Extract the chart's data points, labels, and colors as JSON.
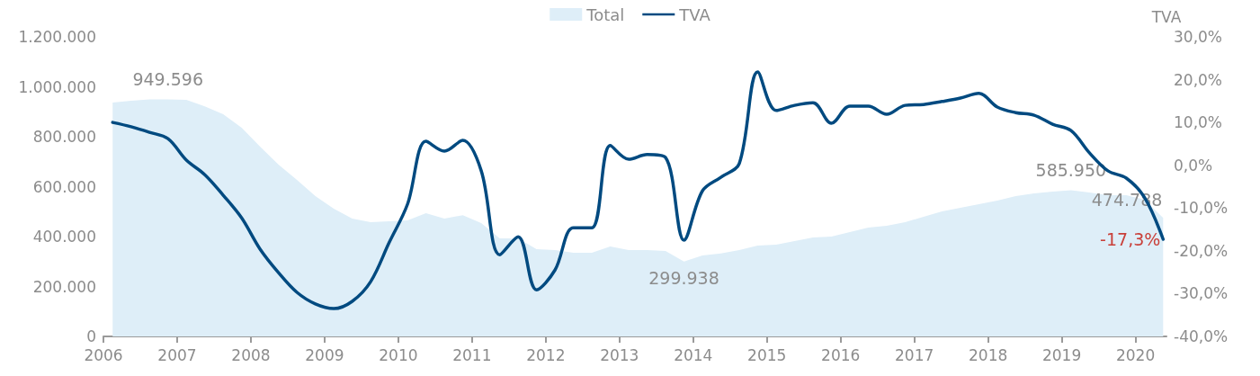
{
  "chart_data": {
    "type": "area",
    "legend": "top",
    "y2label": "TVA",
    "x": [
      2006.125,
      2006.375,
      2006.625,
      2006.875,
      2007.125,
      2007.375,
      2007.625,
      2007.875,
      2008.125,
      2008.375,
      2008.625,
      2008.875,
      2009.125,
      2009.375,
      2009.625,
      2009.875,
      2010.125,
      2010.375,
      2010.625,
      2010.875,
      2011.125,
      2011.375,
      2011.625,
      2011.875,
      2012.125,
      2012.375,
      2012.625,
      2012.875,
      2013.125,
      2013.375,
      2013.625,
      2013.875,
      2014.125,
      2014.375,
      2014.625,
      2014.875,
      2015.125,
      2015.375,
      2015.625,
      2015.875,
      2016.125,
      2016.375,
      2016.625,
      2016.875,
      2017.125,
      2017.375,
      2017.625,
      2017.875,
      2018.125,
      2018.375,
      2018.625,
      2018.875,
      2019.125,
      2019.375,
      2019.625,
      2019.875,
      2020.125,
      2020.375
    ],
    "series": [
      {
        "name": "Total",
        "color": "#deeef8",
        "values": [
          937000,
          944000,
          950000,
          949596,
          948000,
          922000,
          890000,
          836000,
          760000,
          688000,
          627000,
          562000,
          512000,
          472000,
          458000,
          461000,
          465000,
          494000,
          472000,
          486000,
          454000,
          393000,
          393000,
          350000,
          346000,
          335000,
          335000,
          360000,
          346000,
          346000,
          342000,
          299938,
          324000,
          332000,
          346000,
          364000,
          368000,
          382000,
          396000,
          400000,
          418000,
          436000,
          443000,
          458000,
          479000,
          501000,
          515000,
          530000,
          544000,
          562000,
          573000,
          580000,
          585950,
          577000,
          566000,
          566000,
          548000,
          474788
        ],
        "value_labels": [
          null,
          null,
          null,
          "949.596",
          null,
          null,
          null,
          null,
          null,
          null,
          null,
          null,
          null,
          null,
          null,
          null,
          null,
          null,
          null,
          null,
          null,
          null,
          null,
          null,
          null,
          null,
          null,
          null,
          null,
          null,
          null,
          "299.938",
          null,
          null,
          null,
          null,
          null,
          null,
          null,
          null,
          null,
          null,
          null,
          null,
          null,
          null,
          null,
          null,
          null,
          null,
          null,
          null,
          "585.950",
          null,
          null,
          null,
          null,
          "474.788"
        ]
      },
      {
        "name": "TVA",
        "type": "line",
        "axis": "y2",
        "color": "#004a80",
        "values": [
          10.0,
          9.0,
          7.7,
          6.2,
          1.2,
          -2.2,
          -7.0,
          -12.3,
          -19.6,
          -25.1,
          -29.7,
          -32.4,
          -33.5,
          -31.8,
          -27.2,
          -18.1,
          -9.1,
          5.6,
          3.3,
          5.8,
          -1.3,
          -20.9,
          -16.7,
          -29.1,
          -24.5,
          -14.6,
          -14.6,
          4.6,
          1.4,
          2.5,
          1.8,
          -17.5,
          -6.0,
          -2.8,
          0.4,
          21.8,
          12.8,
          14.0,
          14.6,
          9.8,
          13.8,
          13.8,
          11.9,
          14.0,
          14.2,
          14.9,
          15.7,
          16.8,
          13.6,
          12.3,
          11.7,
          9.6,
          8.1,
          2.9,
          -1.3,
          -3.0,
          -7.6,
          -17.3
        ],
        "value_labels": [
          null,
          null,
          null,
          null,
          null,
          null,
          null,
          null,
          null,
          null,
          null,
          null,
          null,
          null,
          null,
          null,
          null,
          null,
          null,
          null,
          null,
          null,
          null,
          null,
          null,
          null,
          null,
          null,
          null,
          null,
          null,
          null,
          null,
          null,
          null,
          null,
          null,
          null,
          null,
          null,
          null,
          null,
          null,
          null,
          null,
          null,
          null,
          null,
          null,
          null,
          null,
          null,
          null,
          null,
          null,
          null,
          null,
          "-17,3%"
        ]
      }
    ],
    "xlim": [
      2006,
      2020.42
    ],
    "xticks": [
      2006,
      2007,
      2008,
      2009,
      2010,
      2011,
      2012,
      2013,
      2014,
      2015,
      2016,
      2017,
      2018,
      2019,
      2020
    ],
    "ylim": [
      0,
      1200000
    ],
    "yticks": [
      {
        "value": 0,
        "label": "0"
      },
      {
        "value": 200000,
        "label": "200.000"
      },
      {
        "value": 400000,
        "label": "400.000"
      },
      {
        "value": 600000,
        "label": "600.000"
      },
      {
        "value": 800000,
        "label": "800.000"
      },
      {
        "value": 1000000,
        "label": "1.000.000"
      },
      {
        "value": 1200000,
        "label": "1.200.000"
      }
    ],
    "y2lim": [
      -40,
      30
    ],
    "y2ticks": [
      {
        "value": -40,
        "label": "-40,0%"
      },
      {
        "value": -30,
        "label": "-30,0%"
      },
      {
        "value": -20,
        "label": "-20,0%"
      },
      {
        "value": -10,
        "label": "-10,0%"
      },
      {
        "value": 0,
        "label": "0,0%"
      },
      {
        "value": 10,
        "label": "10,0%"
      },
      {
        "value": 20,
        "label": "20,0%"
      },
      {
        "value": 30,
        "label": "30,0%"
      }
    ],
    "grid": false,
    "marker": "none"
  }
}
